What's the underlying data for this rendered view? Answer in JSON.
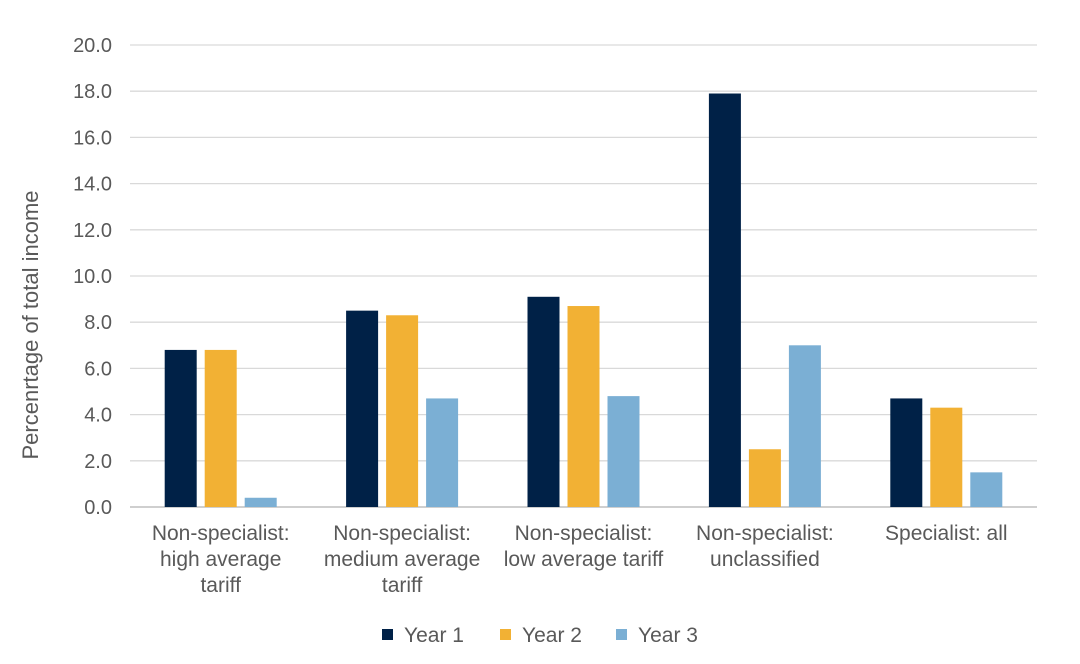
{
  "chart_data": {
    "type": "bar",
    "title": "",
    "xlabel": "",
    "ylabel": "Percenrtage of total income",
    "ylim": [
      0,
      20
    ],
    "yticks": [
      "0.0",
      "2.0",
      "4.0",
      "6.0",
      "8.0",
      "10.0",
      "12.0",
      "14.0",
      "16.0",
      "18.0",
      "20.0"
    ],
    "grid": true,
    "legend_position": "bottom",
    "categories": [
      [
        "Non-specialist:",
        "high average",
        "tariff"
      ],
      [
        "Non-specialist:",
        "medium average",
        "tariff"
      ],
      [
        "Non-specialist:",
        "low average tariff"
      ],
      [
        "Non-specialist:",
        "unclassified"
      ],
      [
        "Specialist: all"
      ]
    ],
    "series": [
      {
        "name": "Year 1",
        "color": "#002147",
        "values": [
          6.8,
          8.5,
          9.1,
          17.9,
          4.7
        ]
      },
      {
        "name": "Year 2",
        "color": "#f2b134",
        "values": [
          6.8,
          8.3,
          8.7,
          2.5,
          4.3
        ]
      },
      {
        "name": "Year 3",
        "color": "#7bafd4",
        "values": [
          0.4,
          4.7,
          4.8,
          7.0,
          1.5
        ]
      }
    ]
  }
}
